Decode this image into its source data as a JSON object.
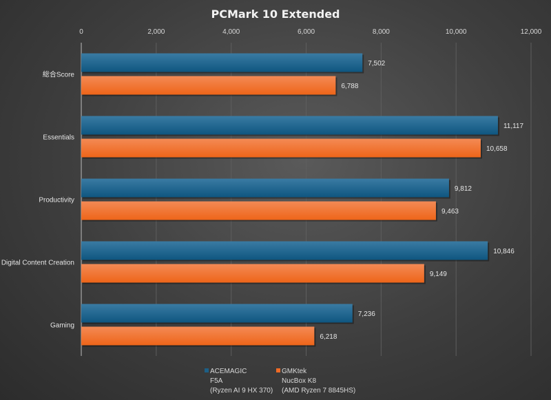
{
  "chart_data": {
    "type": "bar",
    "orientation": "horizontal",
    "title": "PCMark 10 Extended",
    "categories": [
      "総合Score",
      "Essentials",
      "Productivity",
      "Digital Content Creation",
      "Gaming"
    ],
    "xlim": [
      0,
      12000
    ],
    "xticks": [
      0,
      2000,
      4000,
      6000,
      8000,
      10000,
      12000
    ],
    "xtick_labels": [
      "0",
      "2,000",
      "4,000",
      "6,000",
      "8,000",
      "10,000",
      "12,000"
    ],
    "x_axis_position": "top",
    "grid": true,
    "legend_placement": "bottom",
    "series": [
      {
        "name": [
          "ACEMAGIC",
          "F5A",
          "(Ryzen AI 9 HX 370)"
        ],
        "color": "#1d5f86",
        "values": [
          7502,
          11117,
          9812,
          10846,
          7236
        ],
        "labels": [
          "7,502",
          "11,117",
          "9,812",
          "10,846",
          "7,236"
        ]
      },
      {
        "name": [
          "GMKtek",
          "NucBox K8",
          "(AMD Ryzen 7 8845HS)"
        ],
        "color": "#f06b26",
        "values": [
          6788,
          10658,
          9463,
          9149,
          6218
        ],
        "labels": [
          "6,788",
          "10,658",
          "9,463",
          "9,149",
          "6,218"
        ]
      }
    ]
  }
}
